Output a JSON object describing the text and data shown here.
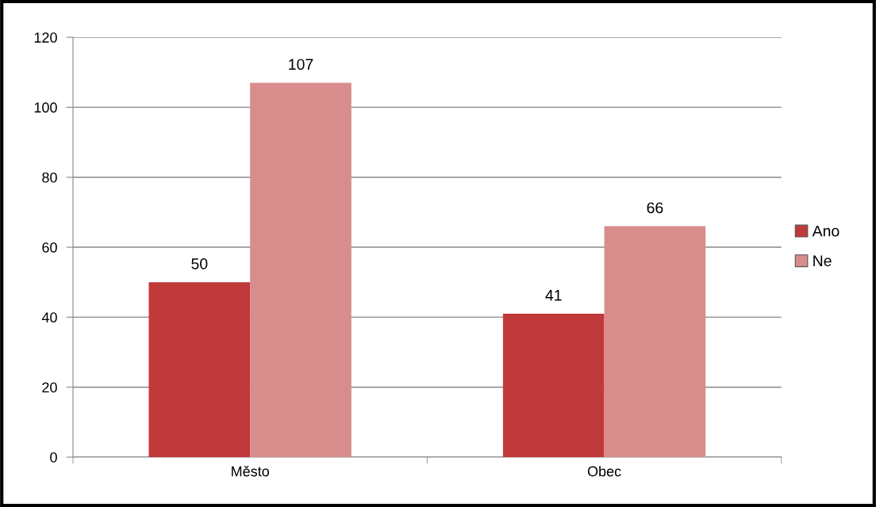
{
  "chart_data": {
    "type": "bar",
    "categories": [
      "Město",
      "Obec"
    ],
    "series": [
      {
        "name": "Ano",
        "color": "#c0393b",
        "values": [
          50,
          41
        ]
      },
      {
        "name": "Ne",
        "color": "#d98c8c",
        "values": [
          107,
          66
        ]
      }
    ],
    "ylim": [
      0,
      120
    ],
    "yticks": [
      0,
      20,
      40,
      60,
      80,
      100,
      120
    ],
    "grid": "y",
    "legend": "right",
    "data_labels": true
  }
}
